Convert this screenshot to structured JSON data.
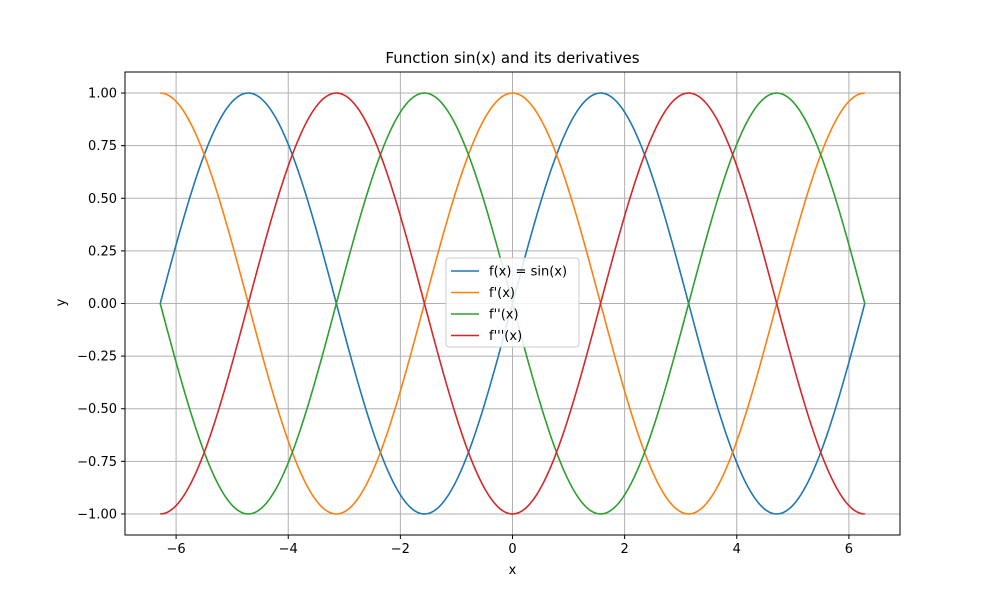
{
  "chart_data": {
    "type": "line",
    "title": "Function sin(x) and its derivatives",
    "xlabel": "x",
    "ylabel": "y",
    "xlim": [
      -6.9115,
      6.9115
    ],
    "ylim": [
      -1.1,
      1.1
    ],
    "grid": true,
    "legend_position": "center",
    "x_range": [
      -6.2832,
      6.2832
    ],
    "samples": 400,
    "xticks": [
      -6,
      -4,
      -2,
      0,
      2,
      4,
      6
    ],
    "xtick_labels": [
      "−6",
      "−4",
      "−2",
      "0",
      "2",
      "4",
      "6"
    ],
    "yticks": [
      -1.0,
      -0.75,
      -0.5,
      -0.25,
      0.0,
      0.25,
      0.5,
      0.75,
      1.0
    ],
    "ytick_labels": [
      "−1.00",
      "−0.75",
      "−0.50",
      "−0.25",
      "0.00",
      "0.25",
      "0.50",
      "0.75",
      "1.00"
    ],
    "series": [
      {
        "name": "f(x) = sin(x)",
        "function": "sin",
        "color": "#1f77b4"
      },
      {
        "name": "f'(x)",
        "function": "cos",
        "color": "#ff7f0e"
      },
      {
        "name": "f''(x)",
        "function": "-sin",
        "color": "#2ca02c"
      },
      {
        "name": "f'''(x)",
        "function": "-cos",
        "color": "#d62728"
      }
    ]
  }
}
